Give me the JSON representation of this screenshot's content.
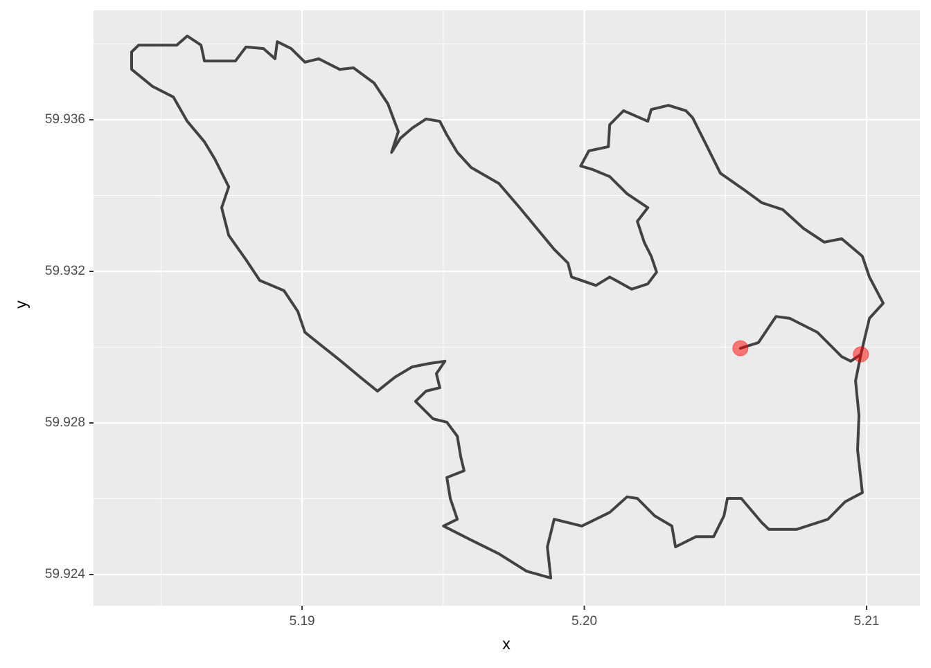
{
  "chart_data": {
    "type": "path",
    "x_label": "x",
    "y_label": "y",
    "xlim": [
      5.18261,
      5.21189
    ],
    "ylim": [
      59.923178,
      59.938886
    ],
    "xticks": [
      5.19,
      {
        "value": 5.2,
        "label": "5.20"
      },
      5.21
    ],
    "yticks": [
      59.924,
      59.928,
      59.932,
      59.936
    ],
    "grid": true,
    "path": {
      "color": "#000000",
      "x": [
        5.20553,
        5.20617,
        5.20679,
        5.20728,
        5.20826,
        5.20912,
        5.20944,
        5.2098,
        5.2101,
        5.21059,
        5.2101,
        5.20985,
        5.20912,
        5.2085,
        5.20777,
        5.20703,
        5.20629,
        5.20568,
        5.20482,
        5.20433,
        5.20384,
        5.2036,
        5.20298,
        5.20237,
        5.20225,
        5.20139,
        5.2009,
        5.20085,
        5.20016,
        5.19987,
        5.20028,
        5.2009,
        5.20151,
        5.20225,
        5.20188,
        5.20212,
        5.20237,
        5.20256,
        5.20225,
        5.20168,
        5.2009,
        5.20041,
        5.19955,
        5.19942,
        5.19893,
        5.19832,
        5.19771,
        5.19697,
        5.19599,
        5.1955,
        5.19513,
        5.19488,
        5.19439,
        5.1939,
        5.19348,
        5.19317,
        5.19341,
        5.19304,
        5.19255,
        5.19182,
        5.19133,
        5.19059,
        5.1901,
        5.18961,
        5.18912,
        5.18904,
        5.18863,
        5.18801,
        5.18764,
        5.18654,
        5.18642,
        5.18593,
        5.18556,
        5.18421,
        5.18396,
        5.18396,
        5.1847,
        5.18544,
        5.18593,
        5.18654,
        5.18691,
        5.1874,
        5.18715,
        5.1874,
        5.18801,
        5.1885,
        5.18936,
        5.18985,
        5.1901,
        5.19071,
        5.19133,
        5.19206,
        5.19267,
        5.19329,
        5.1939,
        5.19452,
        5.19506,
        5.19476,
        5.19488,
        5.19439,
        5.19402,
        5.19464,
        5.19513,
        5.1955,
        5.19562,
        5.19574,
        5.19513,
        5.19525,
        5.1955,
        5.19501,
        5.19599,
        5.19697,
        5.19795,
        5.19881,
        5.19869,
        5.19893,
        5.19991,
        5.2009,
        5.20151,
        5.20188,
        5.20249,
        5.2031,
        5.20323,
        5.20396,
        5.20458,
        5.20495,
        5.20507,
        5.20556,
        5.20629,
        5.20654,
        5.20752,
        5.20863,
        5.20924,
        5.20985,
        5.20968,
        5.20973,
        5.20961,
        5.2098
      ],
      "y": [
        59.92997,
        59.93012,
        59.93081,
        59.93076,
        59.93039,
        59.92975,
        59.92963,
        59.92981,
        59.93076,
        59.93116,
        59.93185,
        59.9324,
        59.93286,
        59.93277,
        59.93313,
        59.93363,
        59.93381,
        59.93414,
        59.93459,
        59.93532,
        59.93605,
        59.93624,
        59.93638,
        59.93627,
        59.93596,
        59.93624,
        59.93587,
        59.93529,
        59.93518,
        59.93478,
        59.93469,
        59.9345,
        59.93405,
        59.93368,
        59.93332,
        59.93277,
        59.9324,
        59.93198,
        59.93167,
        59.93153,
        59.93185,
        59.93163,
        59.93185,
        59.93222,
        59.93258,
        59.93313,
        59.93368,
        59.93432,
        59.93474,
        59.93514,
        59.9356,
        59.93596,
        59.93602,
        59.93578,
        59.93551,
        59.93514,
        59.93569,
        59.93642,
        59.93697,
        59.93737,
        59.93733,
        59.93761,
        59.93752,
        59.93788,
        59.93806,
        59.93761,
        59.93788,
        59.93792,
        59.93755,
        59.93755,
        59.93797,
        59.93821,
        59.93797,
        59.93797,
        59.93779,
        59.93733,
        59.93688,
        59.9366,
        59.93596,
        59.93542,
        59.93496,
        59.93423,
        59.93368,
        59.93295,
        59.93231,
        59.93176,
        59.93149,
        59.93094,
        59.93039,
        59.93003,
        59.92966,
        59.92921,
        59.92884,
        59.92921,
        59.92948,
        59.92957,
        59.92963,
        59.9293,
        59.92893,
        59.92884,
        59.92857,
        59.92811,
        59.92802,
        59.92765,
        59.92711,
        59.92674,
        59.92656,
        59.92601,
        59.92546,
        59.92528,
        59.92491,
        59.92455,
        59.92409,
        59.92391,
        59.92473,
        59.92546,
        59.92528,
        59.92564,
        59.92605,
        59.92601,
        59.92555,
        59.92528,
        59.92473,
        59.925,
        59.925,
        59.92555,
        59.92601,
        59.92601,
        59.92537,
        59.92519,
        59.92519,
        59.92546,
        59.92592,
        59.92616,
        59.92729,
        59.9282,
        59.92911,
        59.92981
      ]
    },
    "points": {
      "color": "#ff0000",
      "x": [
        5.20553,
        5.2098
      ],
      "y": [
        59.92997,
        59.92981
      ]
    }
  }
}
